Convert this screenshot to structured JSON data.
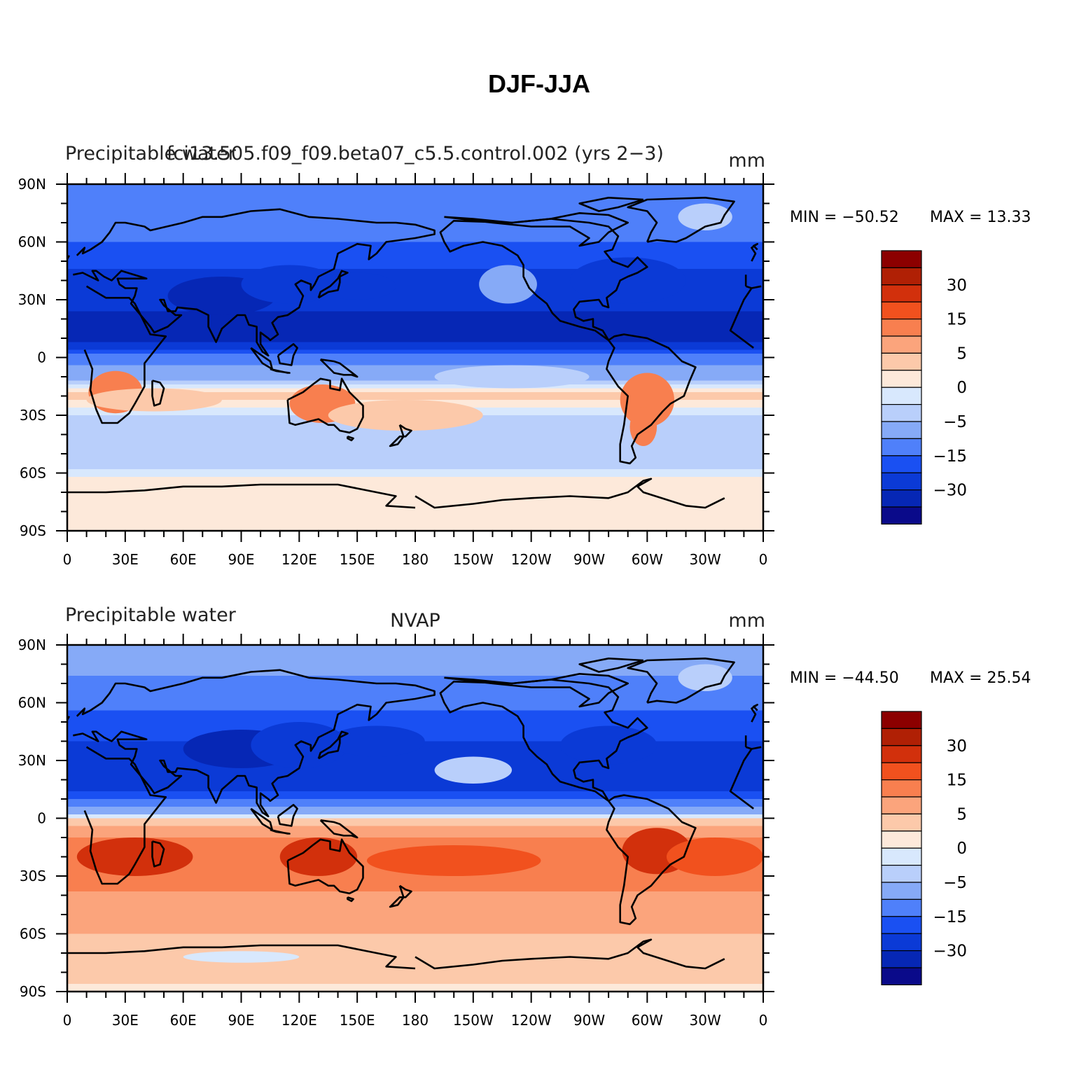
{
  "title": "DJF-JJA",
  "palette": [
    "#0a0a8a",
    "#0627b5",
    "#0b3ad6",
    "#1a50f2",
    "#4f80fa",
    "#86aaf7",
    "#b9cffb",
    "#d8e8fd",
    "#fde9da",
    "#fcc9aa",
    "#fba47c",
    "#f87f4f",
    "#f1511e",
    "#d2300c",
    "#b02005",
    "#8c0000"
  ],
  "colorbar_labels": [
    "30",
    "15",
    "5",
    "0",
    "−5",
    "−15",
    "−30"
  ],
  "x_ticks": [
    "0",
    "30E",
    "60E",
    "90E",
    "120E",
    "150E",
    "180",
    "150W",
    "120W",
    "90W",
    "60W",
    "30W",
    "0"
  ],
  "y_ticks": [
    "90N",
    "60N",
    "30N",
    "0",
    "30S",
    "60S",
    "90S"
  ],
  "panels": [
    {
      "left_title": "Precipitable water",
      "center_title": "fci13.505.f09_f09.beta07_c5.5.control.002 (yrs 2−3)",
      "units": "mm",
      "min_label": "MIN = −50.52",
      "max_label": "MAX =   13.33"
    },
    {
      "left_title": "Precipitable water",
      "center_title": "NVAP",
      "units": "mm",
      "min_label": "MIN = −44.50",
      "max_label": "MAX =   25.54"
    }
  ],
  "chart_data": [
    {
      "type": "heatmap",
      "title": "fci13.505.f09_f09.beta07_c5.5.control.002 (yrs 2−3)",
      "variable": "Precipitable water",
      "units": "mm",
      "xlim": [
        0,
        360
      ],
      "ylim": [
        -90,
        90
      ],
      "min": -50.52,
      "max": 13.33,
      "zonal_profile": [
        {
          "lat": 90,
          "value": -12
        },
        {
          "lat": 75,
          "value": -12
        },
        {
          "lat": 60,
          "value": -15
        },
        {
          "lat": 40,
          "value": -22
        },
        {
          "lat": 25,
          "value": -30
        },
        {
          "lat": 12,
          "value": -40
        },
        {
          "lat": 5,
          "value": -22
        },
        {
          "lat": 0,
          "value": -12
        },
        {
          "lat": -10,
          "value": -6
        },
        {
          "lat": -20,
          "value": 3
        },
        {
          "lat": -30,
          "value": -2
        },
        {
          "lat": -40,
          "value": -4
        },
        {
          "lat": -55,
          "value": -3
        },
        {
          "lat": -65,
          "value": 1
        },
        {
          "lat": -90,
          "value": 1
        }
      ]
    },
    {
      "type": "heatmap",
      "title": "NVAP",
      "variable": "Precipitable water",
      "units": "mm",
      "xlim": [
        0,
        360
      ],
      "ylim": [
        -90,
        90
      ],
      "min": -44.5,
      "max": 25.54,
      "zonal_profile": [
        {
          "lat": 90,
          "value": -8
        },
        {
          "lat": 75,
          "value": -10
        },
        {
          "lat": 60,
          "value": -14
        },
        {
          "lat": 40,
          "value": -20
        },
        {
          "lat": 25,
          "value": -30
        },
        {
          "lat": 12,
          "value": -18
        },
        {
          "lat": 4,
          "value": -8
        },
        {
          "lat": 0,
          "value": 2
        },
        {
          "lat": -10,
          "value": 10
        },
        {
          "lat": -20,
          "value": 15
        },
        {
          "lat": -30,
          "value": 12
        },
        {
          "lat": -45,
          "value": 8
        },
        {
          "lat": -60,
          "value": 5
        },
        {
          "lat": -80,
          "value": 3
        },
        {
          "lat": -90,
          "value": 1
        }
      ]
    }
  ]
}
